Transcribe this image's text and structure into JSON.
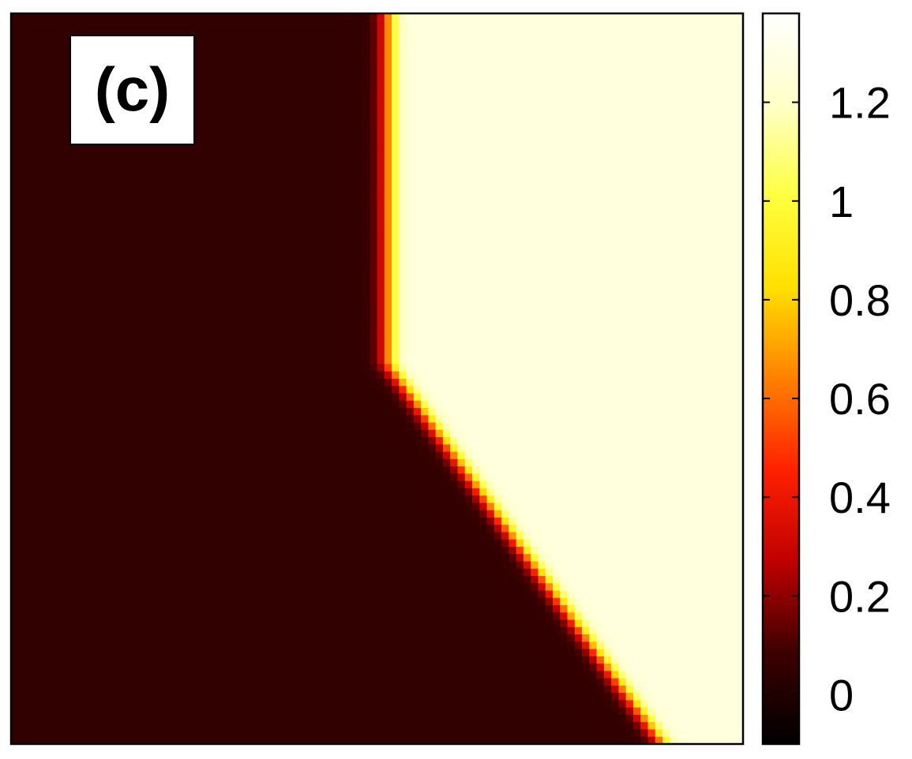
{
  "chart_data": {
    "type": "heatmap",
    "panel_label": "(c)",
    "title": "",
    "xlabel": "",
    "ylabel": "",
    "axes_ticks_shown": false,
    "grid": false,
    "field": {
      "low_value": 0.05,
      "high_value": 1.27,
      "boundary_note": "",
      "boundary": [
        {
          "y": 0.0,
          "x": 0.515
        },
        {
          "y": 0.48,
          "x": 0.515
        },
        {
          "y": 1.0,
          "x": 0.89
        }
      ]
    },
    "colorbar": {
      "range": [
        -0.1,
        1.38
      ],
      "ticks": [
        0,
        0.2,
        0.4,
        0.6,
        0.8,
        1,
        1.2
      ],
      "tick_labels": [
        "0",
        "0.2",
        "0.4",
        "0.6",
        "0.8",
        "1",
        "1.2"
      ],
      "colormap": "black-red-orange-yellow-white",
      "colormap_stops": [
        "#000000",
        "#3d0000",
        "#c00000",
        "#ff2000",
        "#ff8000",
        "#ffe000",
        "#ffff40",
        "#ffffc8",
        "#ffffff"
      ]
    }
  }
}
